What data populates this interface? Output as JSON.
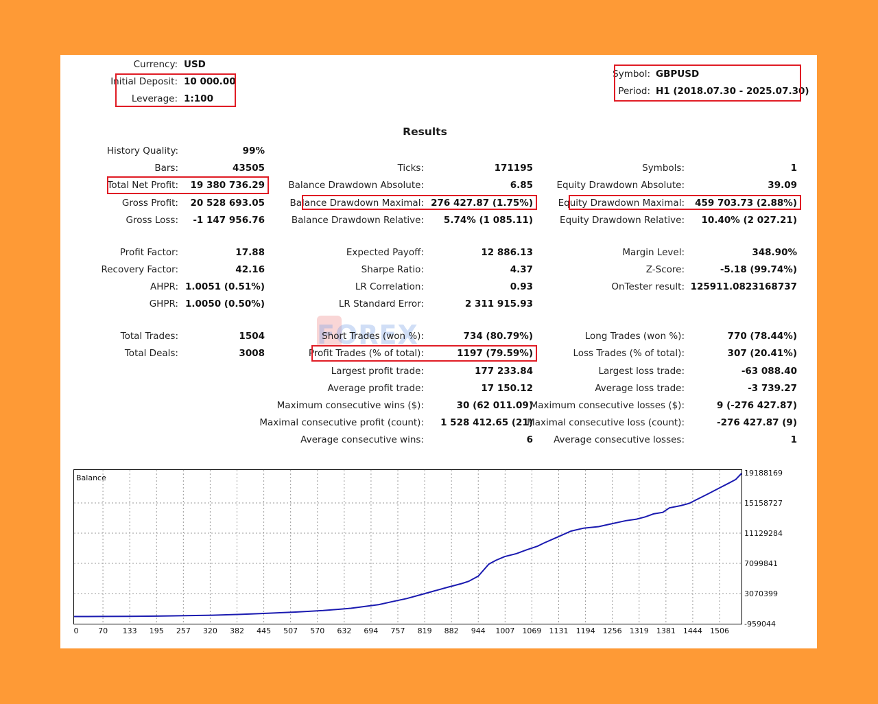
{
  "header": {
    "currency_label": "Currency:",
    "currency_value": "USD",
    "deposit_label": "Initial Deposit:",
    "deposit_value": "10 000.00",
    "leverage_label": "Leverage:",
    "leverage_value": "1:100",
    "symbol_label": "Symbol:",
    "symbol_value": "GBPUSD",
    "period_label": "Period:",
    "period_value": "H1 (2018.07.30 - 2025.07.30)"
  },
  "results_title": "Results",
  "col1": [
    {
      "label": "History Quality:",
      "value": "99%"
    },
    {
      "label": "Bars:",
      "value": "43505"
    },
    {
      "label": "Total Net Profit:",
      "value": "19 380 736.29"
    },
    {
      "label": "Gross Profit:",
      "value": "20 528 693.05"
    },
    {
      "label": "Gross Loss:",
      "value": "-1 147 956.76"
    },
    {
      "label": "Profit Factor:",
      "value": "17.88"
    },
    {
      "label": "Recovery Factor:",
      "value": "42.16"
    },
    {
      "label": "AHPR:",
      "value": "1.0051 (0.51%)"
    },
    {
      "label": "GHPR:",
      "value": "1.0050 (0.50%)"
    },
    {
      "label": "Total Trades:",
      "value": "1504"
    },
    {
      "label": "Total Deals:",
      "value": "3008"
    }
  ],
  "col2": [
    {
      "label": "Ticks:",
      "value": "171195"
    },
    {
      "label": "Balance Drawdown Absolute:",
      "value": "6.85"
    },
    {
      "label": "Balance Drawdown Maximal:",
      "value": "276 427.87 (1.75%)"
    },
    {
      "label": "Balance Drawdown Relative:",
      "value": "5.74% (1 085.11)"
    },
    {
      "label": "Expected Payoff:",
      "value": "12 886.13"
    },
    {
      "label": "Sharpe Ratio:",
      "value": "4.37"
    },
    {
      "label": "LR Correlation:",
      "value": "0.93"
    },
    {
      "label": "LR Standard Error:",
      "value": "2 311 915.93"
    },
    {
      "label": "Short Trades (won %):",
      "value": "734 (80.79%)"
    },
    {
      "label": "Profit Trades (% of total):",
      "value": "1197 (79.59%)"
    },
    {
      "label": "Largest profit trade:",
      "value": "177 233.84"
    },
    {
      "label": "Average profit trade:",
      "value": "17 150.12"
    },
    {
      "label": "Maximum consecutive wins ($):",
      "value": "30 (62 011.09)"
    },
    {
      "label": "Maximal consecutive profit (count):",
      "value": "1 528 412.65 (21)"
    },
    {
      "label": "Average consecutive wins:",
      "value": "6"
    }
  ],
  "col3": [
    {
      "label": "Symbols:",
      "value": "1"
    },
    {
      "label": "Equity Drawdown Absolute:",
      "value": "39.09"
    },
    {
      "label": "Equity Drawdown Maximal:",
      "value": "459 703.73 (2.88%)"
    },
    {
      "label": "Equity Drawdown Relative:",
      "value": "10.40% (2 027.21)"
    },
    {
      "label": "Margin Level:",
      "value": "348.90%"
    },
    {
      "label": "Z-Score:",
      "value": "-5.18 (99.74%)"
    },
    {
      "label": "OnTester result:",
      "value": "125911.0823168737"
    },
    {
      "label": "Long Trades (won %):",
      "value": "770 (78.44%)"
    },
    {
      "label": "Loss Trades (% of total):",
      "value": "307 (20.41%)"
    },
    {
      "label": "Largest loss trade:",
      "value": "-63 088.40"
    },
    {
      "label": "Average loss trade:",
      "value": "-3 739.27"
    },
    {
      "label": "Maximum consecutive losses ($):",
      "value": "9 (-276 427.87)"
    },
    {
      "label": "Maximal consecutive loss (count):",
      "value": "-276 427.87 (9)"
    },
    {
      "label": "Average consecutive losses:",
      "value": "1"
    }
  ],
  "watermark": "FOREX",
  "colors": {
    "page_bg": "#FE9A36",
    "highlight": "#e01b24",
    "balance_line": "#1a1ab0"
  },
  "chart_data": {
    "type": "line",
    "title": "Balance",
    "x_ticks": [
      "0",
      "70",
      "133",
      "195",
      "257",
      "320",
      "382",
      "445",
      "507",
      "570",
      "632",
      "694",
      "757",
      "819",
      "882",
      "944",
      "1007",
      "1069",
      "1131",
      "1194",
      "1256",
      "1319",
      "1381",
      "1444",
      "1506"
    ],
    "y_ticks": [
      "19188169",
      "15158727",
      "11129284",
      "7099841",
      "3070399",
      "-959044"
    ],
    "ylim": [
      -959044,
      19188169
    ],
    "xlim": [
      0,
      1519
    ],
    "grid": true,
    "series": [
      {
        "x": [
          0,
          63,
          126,
          189,
          252,
          315,
          378,
          441,
          504,
          567,
          630,
          694,
          725,
          757,
          788,
          819,
          850,
          882,
          898,
          920,
          944,
          960,
          980,
          1007,
          1030,
          1055,
          1069,
          1100,
          1131,
          1160,
          1194,
          1225,
          1256,
          1280,
          1300,
          1319,
          1340,
          1355,
          1381,
          1400,
          1420,
          1444,
          1470,
          1490,
          1506,
          1519
        ],
        "y": [
          0,
          10000,
          30000,
          60000,
          110000,
          180000,
          290000,
          430000,
          600000,
          800000,
          1100000,
          1600000,
          2000000,
          2400000,
          2900000,
          3400000,
          3900000,
          4400000,
          4700000,
          5400000,
          7000000,
          7500000,
          8000000,
          8400000,
          8900000,
          9400000,
          9800000,
          10600000,
          11400000,
          11800000,
          12000000,
          12400000,
          12800000,
          13000000,
          13300000,
          13700000,
          13900000,
          14500000,
          14800000,
          15100000,
          15700000,
          16400000,
          17200000,
          17800000,
          18300000,
          19100000
        ]
      }
    ]
  }
}
